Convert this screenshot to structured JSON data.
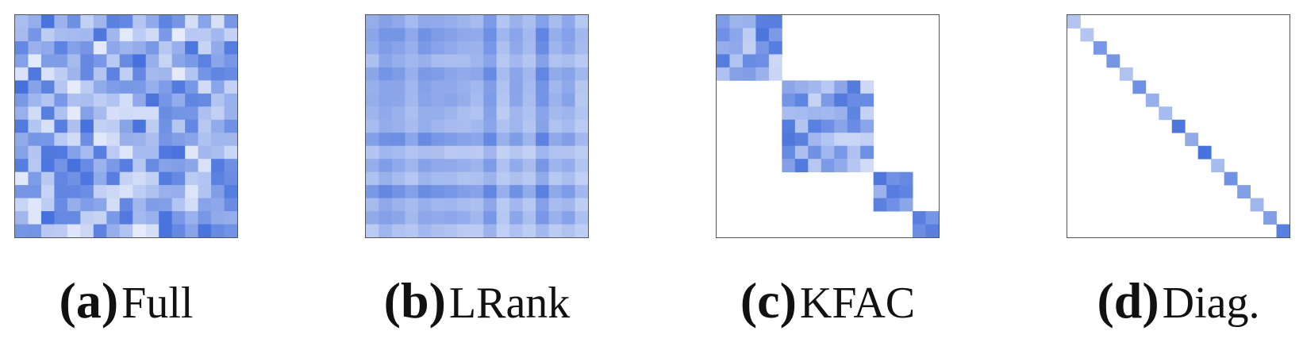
{
  "palette": {
    "cell_dark": "#2a5bd7",
    "cell_light": "#ffffff",
    "frame": "#555555"
  },
  "panels": [
    {
      "tag": "(a)",
      "label": "Full",
      "structure": "full"
    },
    {
      "tag": "(b)",
      "label": "LRank",
      "structure": "low-rank"
    },
    {
      "tag": "(c)",
      "label": "KFAC",
      "structure": "block-diagonal",
      "blocks": [
        5,
        7,
        3,
        2
      ]
    },
    {
      "tag": "(d)",
      "label": "Diag.",
      "structure": "diagonal"
    }
  ]
}
